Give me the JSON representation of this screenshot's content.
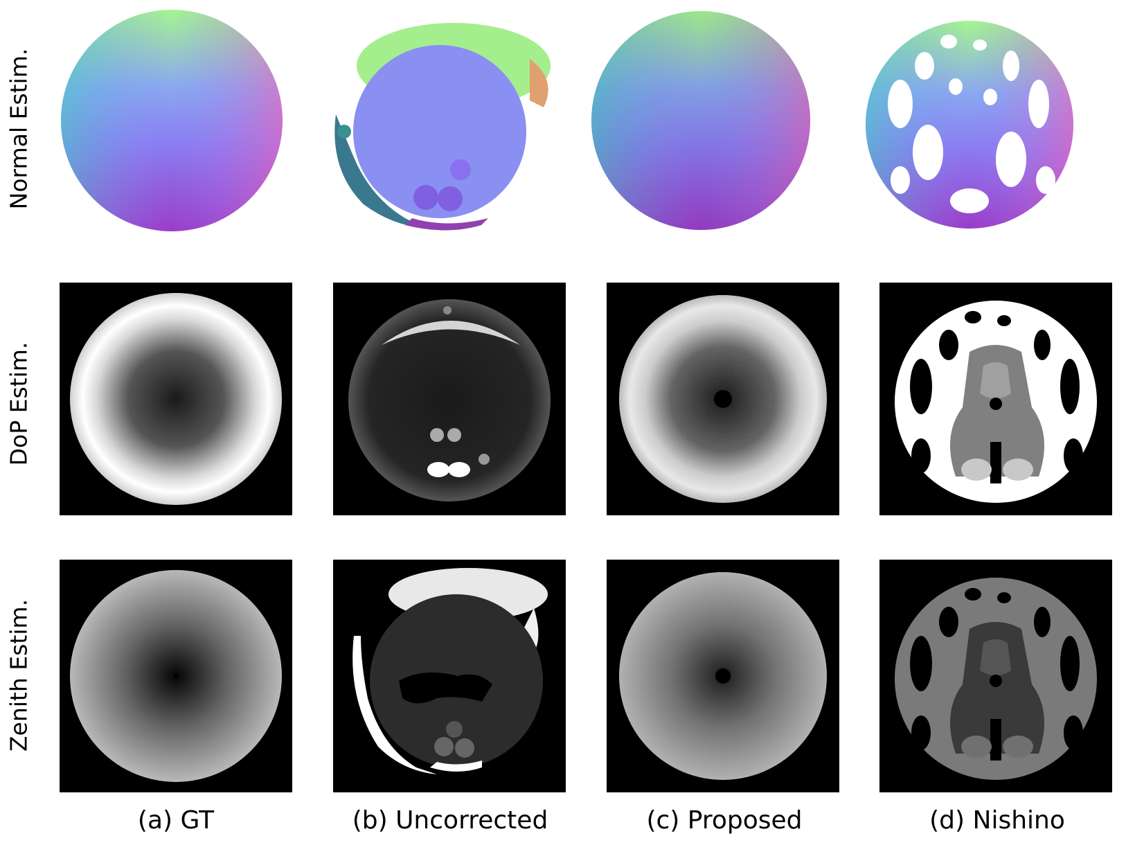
{
  "figure": {
    "row_labels": [
      "Normal Estim.",
      "DoP Estim.",
      "Zenith Estim."
    ],
    "column_labels": [
      "(a) GT",
      "(b) Uncorrected",
      "(c) Proposed",
      "(d) Nishino"
    ],
    "colors": {
      "background": "#ffffff",
      "panel_black": "#000000",
      "normal_top": "#a6f590",
      "normal_center": "#8b8cf0",
      "normal_bottom": "#b03cc0"
    }
  }
}
